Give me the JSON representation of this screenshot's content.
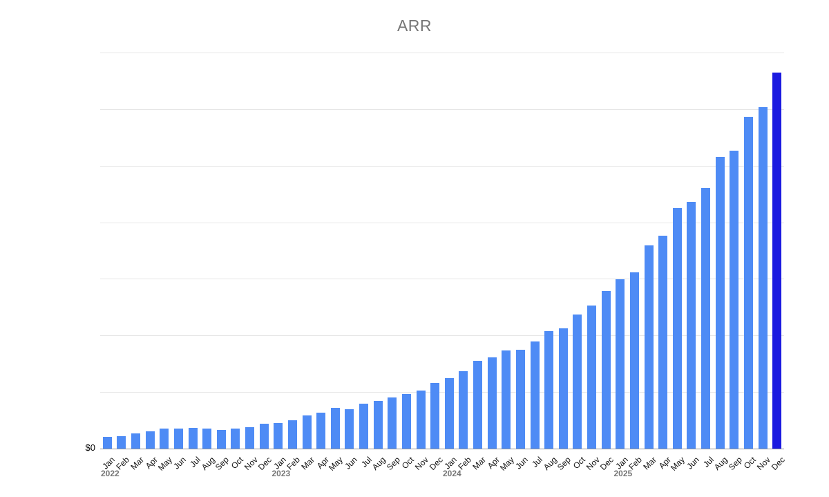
{
  "chart_data": {
    "type": "bar",
    "title": "ARR",
    "xlabel": "",
    "ylabel": "",
    "ytick_labels": [
      "$0"
    ],
    "y_axis_note": "Only $0 is labeled; 7 evenly spaced unlabeled gridlines above it. Values below are in gridline units (1.0 = one gridline interval).",
    "ylim": [
      0,
      7
    ],
    "gridline_count": 7,
    "grid": "horizontal",
    "legend": "none",
    "categories": [
      "Jan 2022",
      "Feb 2022",
      "Mar 2022",
      "Apr 2022",
      "May 2022",
      "Jun 2022",
      "Jul 2022",
      "Aug 2022",
      "Sep 2022",
      "Oct 2022",
      "Nov 2022",
      "Dec 2022",
      "Jan 2023",
      "Feb 2023",
      "Mar 2023",
      "Apr 2023",
      "May 2023",
      "Jun 2023",
      "Jul 2023",
      "Aug 2023",
      "Sep 2023",
      "Oct 2023",
      "Nov 2023",
      "Dec 2023",
      "Jan 2024",
      "Feb 2024",
      "Mar 2024",
      "Apr 2024",
      "May 2024",
      "Jun 2024",
      "Jul 2024",
      "Aug 2024",
      "Sep 2024",
      "Oct 2024",
      "Nov 2024",
      "Dec 2024",
      "Jan 2025",
      "Feb 2025",
      "Mar 2025",
      "Apr 2025",
      "May 2025",
      "Jun 2025",
      "Jul 2025",
      "Aug 2025",
      "Sep 2025",
      "Oct 2025",
      "Nov 2025",
      "Dec 2025"
    ],
    "month_labels": [
      "Jan",
      "Feb",
      "Mar",
      "Apr",
      "May",
      "Jun",
      "Jul",
      "Aug",
      "Sep",
      "Oct",
      "Nov",
      "Dec",
      "Jan",
      "Feb",
      "Mar",
      "Apr",
      "May",
      "Jun",
      "Jul",
      "Aug",
      "Sep",
      "Oct",
      "Nov",
      "Dec",
      "Jan",
      "Feb",
      "Mar",
      "Apr",
      "May",
      "Jun",
      "Jul",
      "Aug",
      "Sep",
      "Oct",
      "Nov",
      "Dec",
      "Jan",
      "Feb",
      "Mar",
      "Apr",
      "May",
      "Jun",
      "Jul",
      "Aug",
      "Sep",
      "Oct",
      "Nov",
      "Dec"
    ],
    "year_markers": [
      {
        "label": "2022",
        "month_index": 0
      },
      {
        "label": "2023",
        "month_index": 12
      },
      {
        "label": "2024",
        "month_index": 24
      },
      {
        "label": "2025",
        "month_index": 36
      }
    ],
    "values": [
      0.21,
      0.22,
      0.27,
      0.3,
      0.35,
      0.35,
      0.37,
      0.35,
      0.33,
      0.36,
      0.38,
      0.44,
      0.45,
      0.5,
      0.59,
      0.63,
      0.72,
      0.7,
      0.79,
      0.84,
      0.9,
      0.96,
      1.03,
      1.16,
      1.25,
      1.37,
      1.55,
      1.61,
      1.73,
      1.75,
      1.89,
      2.08,
      2.12,
      2.37,
      2.53,
      2.78,
      2.99,
      3.11,
      3.59,
      3.76,
      4.25,
      4.36,
      4.61,
      5.15,
      5.27,
      5.86,
      6.04,
      6.64
    ],
    "bar_color": "#4e8bf5",
    "highlight_color": "#1b1ae0",
    "highlight_index": 47,
    "title_color": "#757575",
    "gridline_color": "#e6e6e6",
    "axis_line_color": "#949494",
    "month_label_color": "#111111",
    "year_label_color": "#757575"
  }
}
